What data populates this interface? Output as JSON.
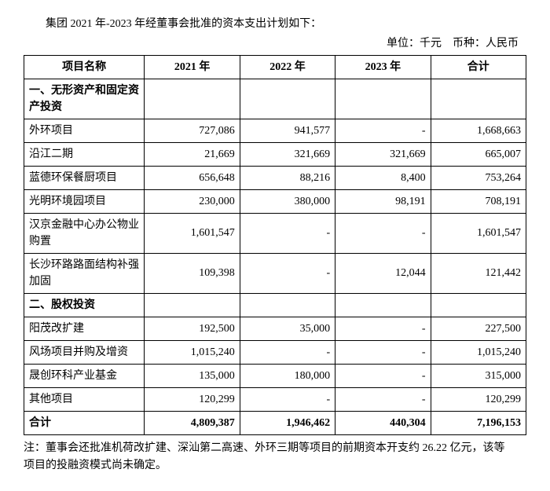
{
  "intro": "集团 2021 年-2023 年经董事会批准的资本支出计划如下：",
  "unit_line": "单位：千元　币种：人民币",
  "headers": {
    "name": "项目名称",
    "y2021": "2021 年",
    "y2022": "2022 年",
    "y2023": "2023 年",
    "total": "合计"
  },
  "section1": "一、无形资产和固定资产投资",
  "section2": "二、股权投资",
  "rows_s1": [
    {
      "name": "外环项目",
      "y2021": "727,086",
      "y2022": "941,577",
      "y2023": "-",
      "total": "1,668,663"
    },
    {
      "name": "沿江二期",
      "y2021": "21,669",
      "y2022": "321,669",
      "y2023": "321,669",
      "total": "665,007"
    },
    {
      "name": "蓝德环保餐厨项目",
      "y2021": "656,648",
      "y2022": "88,216",
      "y2023": "8,400",
      "total": "753,264"
    },
    {
      "name": "光明环境园项目",
      "y2021": "230,000",
      "y2022": "380,000",
      "y2023": "98,191",
      "total": "708,191"
    },
    {
      "name": "汉京金融中心办公物业购置",
      "y2021": "1,601,547",
      "y2022": "-",
      "y2023": "-",
      "total": "1,601,547"
    },
    {
      "name": "长沙环路路面结构补强加固",
      "y2021": "109,398",
      "y2022": "-",
      "y2023": "12,044",
      "total": "121,442"
    }
  ],
  "rows_s2": [
    {
      "name": "阳茂改扩建",
      "y2021": "192,500",
      "y2022": "35,000",
      "y2023": "-",
      "total": "227,500"
    },
    {
      "name": "风场项目并购及增资",
      "y2021": "1,015,240",
      "y2022": "-",
      "y2023": "-",
      "total": "1,015,240"
    },
    {
      "name": "晟创环科产业基金",
      "y2021": "135,000",
      "y2022": "180,000",
      "y2023": "-",
      "total": "315,000"
    },
    {
      "name": "其他项目",
      "y2021": "120,299",
      "y2022": "-",
      "y2023": "-",
      "total": "120,299"
    }
  ],
  "total_row": {
    "name": "合计",
    "y2021": "4,809,387",
    "y2022": "1,946,462",
    "y2023": "440,304",
    "total": "7,196,153"
  },
  "footnote_l1": "注：董事会还批准机荷改扩建、深汕第二高速、外环三期等项目的前期资本开支约 26.22 亿元，该等",
  "footnote_l2": "项目的投融资模式尚未确定。"
}
